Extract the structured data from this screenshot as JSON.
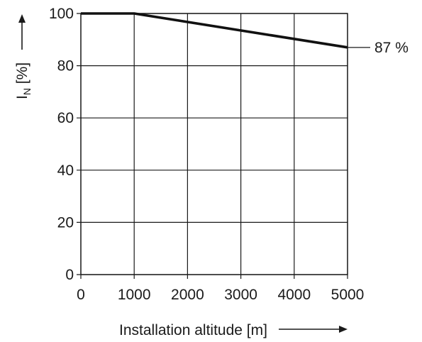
{
  "chart_data": {
    "type": "line",
    "xlabel": "Installation altitude [m]",
    "ylabel_main": "I",
    "ylabel_sub": "N",
    "ylabel_unit": " [%]",
    "xlim": [
      0,
      5000
    ],
    "ylim": [
      0,
      100
    ],
    "x_ticks": [
      0,
      1000,
      2000,
      3000,
      4000,
      5000
    ],
    "x_tick_labels": [
      "0",
      "1000",
      "2000",
      "3000",
      "4000",
      "5000"
    ],
    "y_ticks": [
      0,
      20,
      40,
      60,
      80,
      100
    ],
    "y_tick_labels": [
      "0",
      "20",
      "40",
      "60",
      "80",
      "100"
    ],
    "grid": true,
    "series": [
      {
        "x": [
          0,
          1000,
          5000
        ],
        "y": [
          100,
          100,
          87
        ]
      }
    ],
    "annotations": [
      {
        "text": "87 %",
        "x": 5000,
        "y": 87
      }
    ],
    "colors": {
      "line": "#111111",
      "grid": "#1a1a1a"
    }
  }
}
